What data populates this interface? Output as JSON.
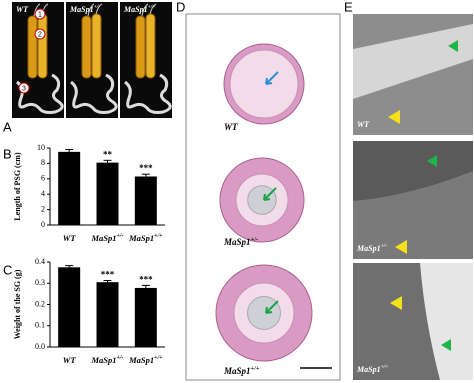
{
  "panel_a": {
    "letter": "A",
    "images": [
      {
        "label": "WT"
      },
      {
        "label": "MaSp1",
        "sup": "+/-"
      },
      {
        "label": "MaSp1",
        "sup": "+/+"
      }
    ],
    "markers": [
      "1",
      "2",
      "3"
    ]
  },
  "chart_data": [
    {
      "type": "bar",
      "panel": "B",
      "ylabel": "Length of PSG (cm)",
      "categories": [
        {
          "name": "WT"
        },
        {
          "name": "MaSp1",
          "sup": "+/-"
        },
        {
          "name": "MaSp1",
          "sup": "+/+"
        }
      ],
      "values": [
        9.5,
        8.1,
        6.3
      ],
      "errors": [
        0.3,
        0.3,
        0.3
      ],
      "significance": [
        null,
        "**",
        "***"
      ],
      "color": "#000000",
      "ylim": [
        0,
        10
      ],
      "yticks": [
        0,
        2,
        4,
        6,
        8,
        10
      ]
    },
    {
      "type": "bar",
      "panel": "C",
      "ylabel": "Weight of the SG (g)",
      "categories": [
        {
          "name": "WT"
        },
        {
          "name": "MaSp1",
          "sup": "+/-"
        },
        {
          "name": "MaSp1",
          "sup": "+/+"
        }
      ],
      "values": [
        0.375,
        0.305,
        0.278
      ],
      "errors": [
        0.008,
        0.008,
        0.012
      ],
      "significance": [
        null,
        "***",
        "***"
      ],
      "color": "#000000",
      "ylim": [
        0,
        0.4
      ],
      "yticks": [
        {
          "value": 0,
          "label": "0.0"
        },
        0.1,
        0.2,
        0.3,
        0.4
      ]
    }
  ],
  "panel_d": {
    "letter": "D",
    "sections": [
      {
        "label": "WT"
      },
      {
        "label": "MaSp1",
        "sup": "+/-"
      },
      {
        "label": "MaSp1",
        "sup": "+/+"
      }
    ]
  },
  "panel_e": {
    "letter": "E",
    "images": [
      {
        "label": "WT"
      },
      {
        "label": "MaSp1",
        "sup": "+/-"
      },
      {
        "label": "MaSp1",
        "sup": "+/+"
      }
    ]
  }
}
